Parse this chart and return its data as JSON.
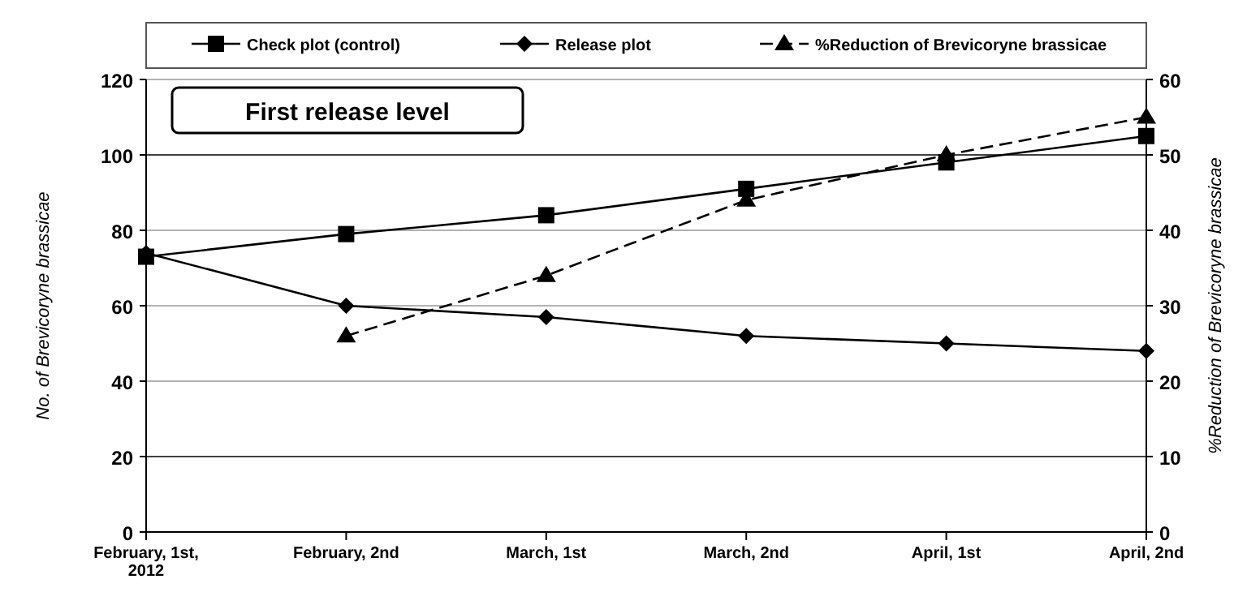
{
  "chart_data": {
    "type": "line",
    "title": "First release level",
    "ylabel": "No. of Brevicoryne brassicae",
    "y2label": "%Reduction of Brevicoryne brassicae",
    "categories": [
      "February, 1st, 2012",
      "February, 2nd",
      "March, 1st",
      "March, 2nd",
      "April, 1st",
      "April, 2nd"
    ],
    "ylim": [
      0,
      120
    ],
    "yticks": [
      0,
      20,
      40,
      60,
      80,
      100,
      120
    ],
    "y2lim": [
      0,
      60
    ],
    "y2ticks": [
      0,
      10,
      20,
      30,
      40,
      50,
      60
    ],
    "grid": "y",
    "legend": "top",
    "series": [
      {
        "name": "Check plot (control)",
        "color": "#000000",
        "values": [
          73,
          79,
          84,
          91,
          98,
          105
        ],
        "marker": "square",
        "line_style": "solid"
      },
      {
        "name": "Release plot",
        "color": "#000000",
        "values": [
          74,
          60,
          57,
          52,
          50,
          48
        ],
        "marker": "diamond",
        "line_style": "solid"
      },
      {
        "name": "%Reduction of Brevicoryne brassicae",
        "color": "#000000",
        "values": [
          null,
          26,
          34,
          44,
          50,
          55
        ],
        "marker": "triangle",
        "line_style": "dashed",
        "axis": "y2"
      }
    ]
  }
}
